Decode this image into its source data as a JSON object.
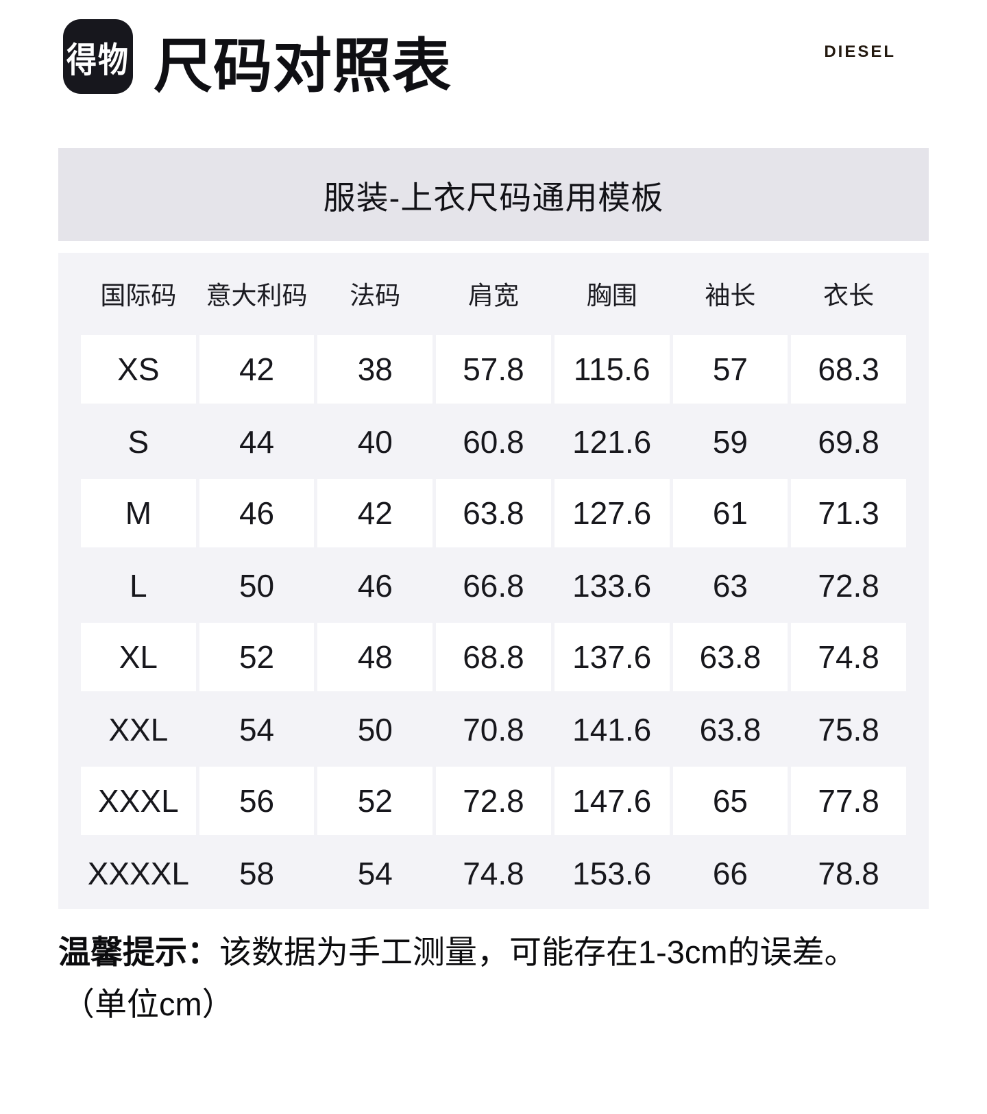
{
  "header": {
    "logo_text": "得物",
    "title": "尺码对照表",
    "brand": "DIESEL"
  },
  "banner": {
    "title": "服装-上衣尺码通用模板",
    "background": "#e5e4ea"
  },
  "table": {
    "background": "#f3f3f7",
    "row_highlight_color": "#ffffff",
    "columns": [
      "国际码",
      "意大利码",
      "法码",
      "肩宽",
      "胸围",
      "袖长",
      "衣长"
    ],
    "rows": [
      [
        "XS",
        "42",
        "38",
        "57.8",
        "115.6",
        "57",
        "68.3"
      ],
      [
        "S",
        "44",
        "40",
        "60.8",
        "121.6",
        "59",
        "69.8"
      ],
      [
        "M",
        "46",
        "42",
        "63.8",
        "127.6",
        "61",
        "71.3"
      ],
      [
        "L",
        "50",
        "46",
        "66.8",
        "133.6",
        "63",
        "72.8"
      ],
      [
        "XL",
        "52",
        "48",
        "68.8",
        "137.6",
        "63.8",
        "74.8"
      ],
      [
        "XXL",
        "54",
        "50",
        "70.8",
        "141.6",
        "63.8",
        "75.8"
      ],
      [
        "XXXL",
        "56",
        "52",
        "72.8",
        "147.6",
        "65",
        "77.8"
      ],
      [
        "XXXXL",
        "58",
        "54",
        "74.8",
        "153.6",
        "66",
        "78.8"
      ]
    ]
  },
  "footer": {
    "tip_label": "温馨提示：",
    "tip_text": "该数据为手工测量，可能存在1-3cm的误差。",
    "unit_note": "（单位cm）"
  },
  "chart_data": {
    "type": "table",
    "title": "服装-上衣尺码通用模板",
    "columns": [
      "国际码",
      "意大利码",
      "法码",
      "肩宽",
      "胸围",
      "袖长",
      "衣长"
    ],
    "unit": "cm",
    "tolerance_note": "该数据为手工测量，可能存在1-3cm的误差",
    "rows": [
      {
        "国际码": "XS",
        "意大利码": 42,
        "法码": 38,
        "肩宽": 57.8,
        "胸围": 115.6,
        "袖长": 57,
        "衣长": 68.3
      },
      {
        "国际码": "S",
        "意大利码": 44,
        "法码": 40,
        "肩宽": 60.8,
        "胸围": 121.6,
        "袖长": 59,
        "衣长": 69.8
      },
      {
        "国际码": "M",
        "意大利码": 46,
        "法码": 42,
        "肩宽": 63.8,
        "胸围": 127.6,
        "袖长": 61,
        "衣长": 71.3
      },
      {
        "国际码": "L",
        "意大利码": 50,
        "法码": 46,
        "肩宽": 66.8,
        "胸围": 133.6,
        "袖长": 63,
        "衣长": 72.8
      },
      {
        "国际码": "XL",
        "意大利码": 52,
        "法码": 48,
        "肩宽": 68.8,
        "胸围": 137.6,
        "袖长": 63.8,
        "衣长": 74.8
      },
      {
        "国际码": "XXL",
        "意大利码": 54,
        "法码": 50,
        "肩宽": 70.8,
        "胸围": 141.6,
        "袖长": 63.8,
        "衣长": 75.8
      },
      {
        "国际码": "XXXL",
        "意大利码": 56,
        "法码": 52,
        "肩宽": 72.8,
        "胸围": 147.6,
        "袖长": 65,
        "衣长": 77.8
      },
      {
        "国际码": "XXXXL",
        "意大利码": 58,
        "法码": 54,
        "肩宽": 74.8,
        "胸围": 153.6,
        "袖长": 66,
        "衣长": 78.8
      }
    ]
  }
}
